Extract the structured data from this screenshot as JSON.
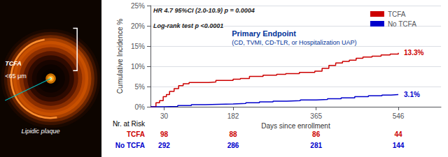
{
  "chart_data": {
    "type": "step",
    "title": "Primary Endpoint",
    "subtitle": "(CD, TVMI, CD-TLR, or Hospitalization UAP)",
    "annotations": [
      "HR 4.7 95%CI (2.0-10.9) p = 0.0004",
      "Log-rank test p <0.0001"
    ],
    "image_annotations": [
      "TCFA",
      "<65 μm",
      "Lipidic plaque"
    ],
    "xlabel": "Days since enrollment",
    "ylabel": "Cumulative Incidence %",
    "xlim": [
      0,
      640
    ],
    "xticks": [
      30,
      182,
      365,
      546
    ],
    "ylim": [
      0,
      25
    ],
    "yticks": [
      {
        "value": 0,
        "label": "0%"
      },
      {
        "value": 5,
        "label": "5%"
      },
      {
        "value": 10,
        "label": "10%"
      },
      {
        "value": 15,
        "label": "15%"
      },
      {
        "value": 20,
        "label": "20%"
      },
      {
        "value": 25,
        "label": "25%"
      }
    ],
    "grid": true,
    "legend": "upper right",
    "at_risk_label": "Nr. at Risk",
    "at_risk_x": [
      30,
      182,
      365,
      546
    ],
    "series": [
      {
        "name": "TCFA",
        "color": "#cc0000",
        "x": [
          0,
          12,
          20,
          28,
          35,
          42,
          52,
          62,
          72,
          85,
          98,
          112,
          128,
          144,
          160,
          182,
          198,
          218,
          248,
          278,
          298,
          328,
          362,
          378,
          393,
          408,
          423,
          438,
          453,
          468,
          488,
          508,
          528,
          546
        ],
        "values": [
          0,
          1.0,
          1.5,
          2.5,
          3.0,
          3.8,
          4.5,
          5.2,
          5.7,
          6.0,
          6.0,
          6.0,
          6.1,
          6.5,
          6.5,
          6.8,
          7.0,
          7.5,
          7.8,
          8.0,
          8.2,
          8.5,
          8.8,
          9.5,
          10.2,
          10.8,
          11.2,
          11.5,
          12.0,
          12.3,
          12.5,
          12.8,
          13.0,
          13.3
        ],
        "end_label": "13.3%",
        "at_risk": [
          98,
          88,
          86,
          44
        ]
      },
      {
        "name": "No TCFA",
        "color": "#0000cc",
        "x": [
          0,
          30,
          60,
          90,
          120,
          150,
          182,
          210,
          240,
          270,
          300,
          330,
          365,
          390,
          420,
          450,
          480,
          510,
          530,
          546
        ],
        "values": [
          0,
          0.1,
          0.3,
          0.5,
          0.6,
          0.7,
          0.8,
          1.0,
          1.2,
          1.4,
          1.5,
          1.7,
          1.8,
          2.0,
          2.2,
          2.5,
          2.7,
          2.9,
          3.0,
          3.1
        ],
        "end_label": "3.1%",
        "at_risk": [
          292,
          286,
          281,
          144
        ]
      }
    ]
  }
}
